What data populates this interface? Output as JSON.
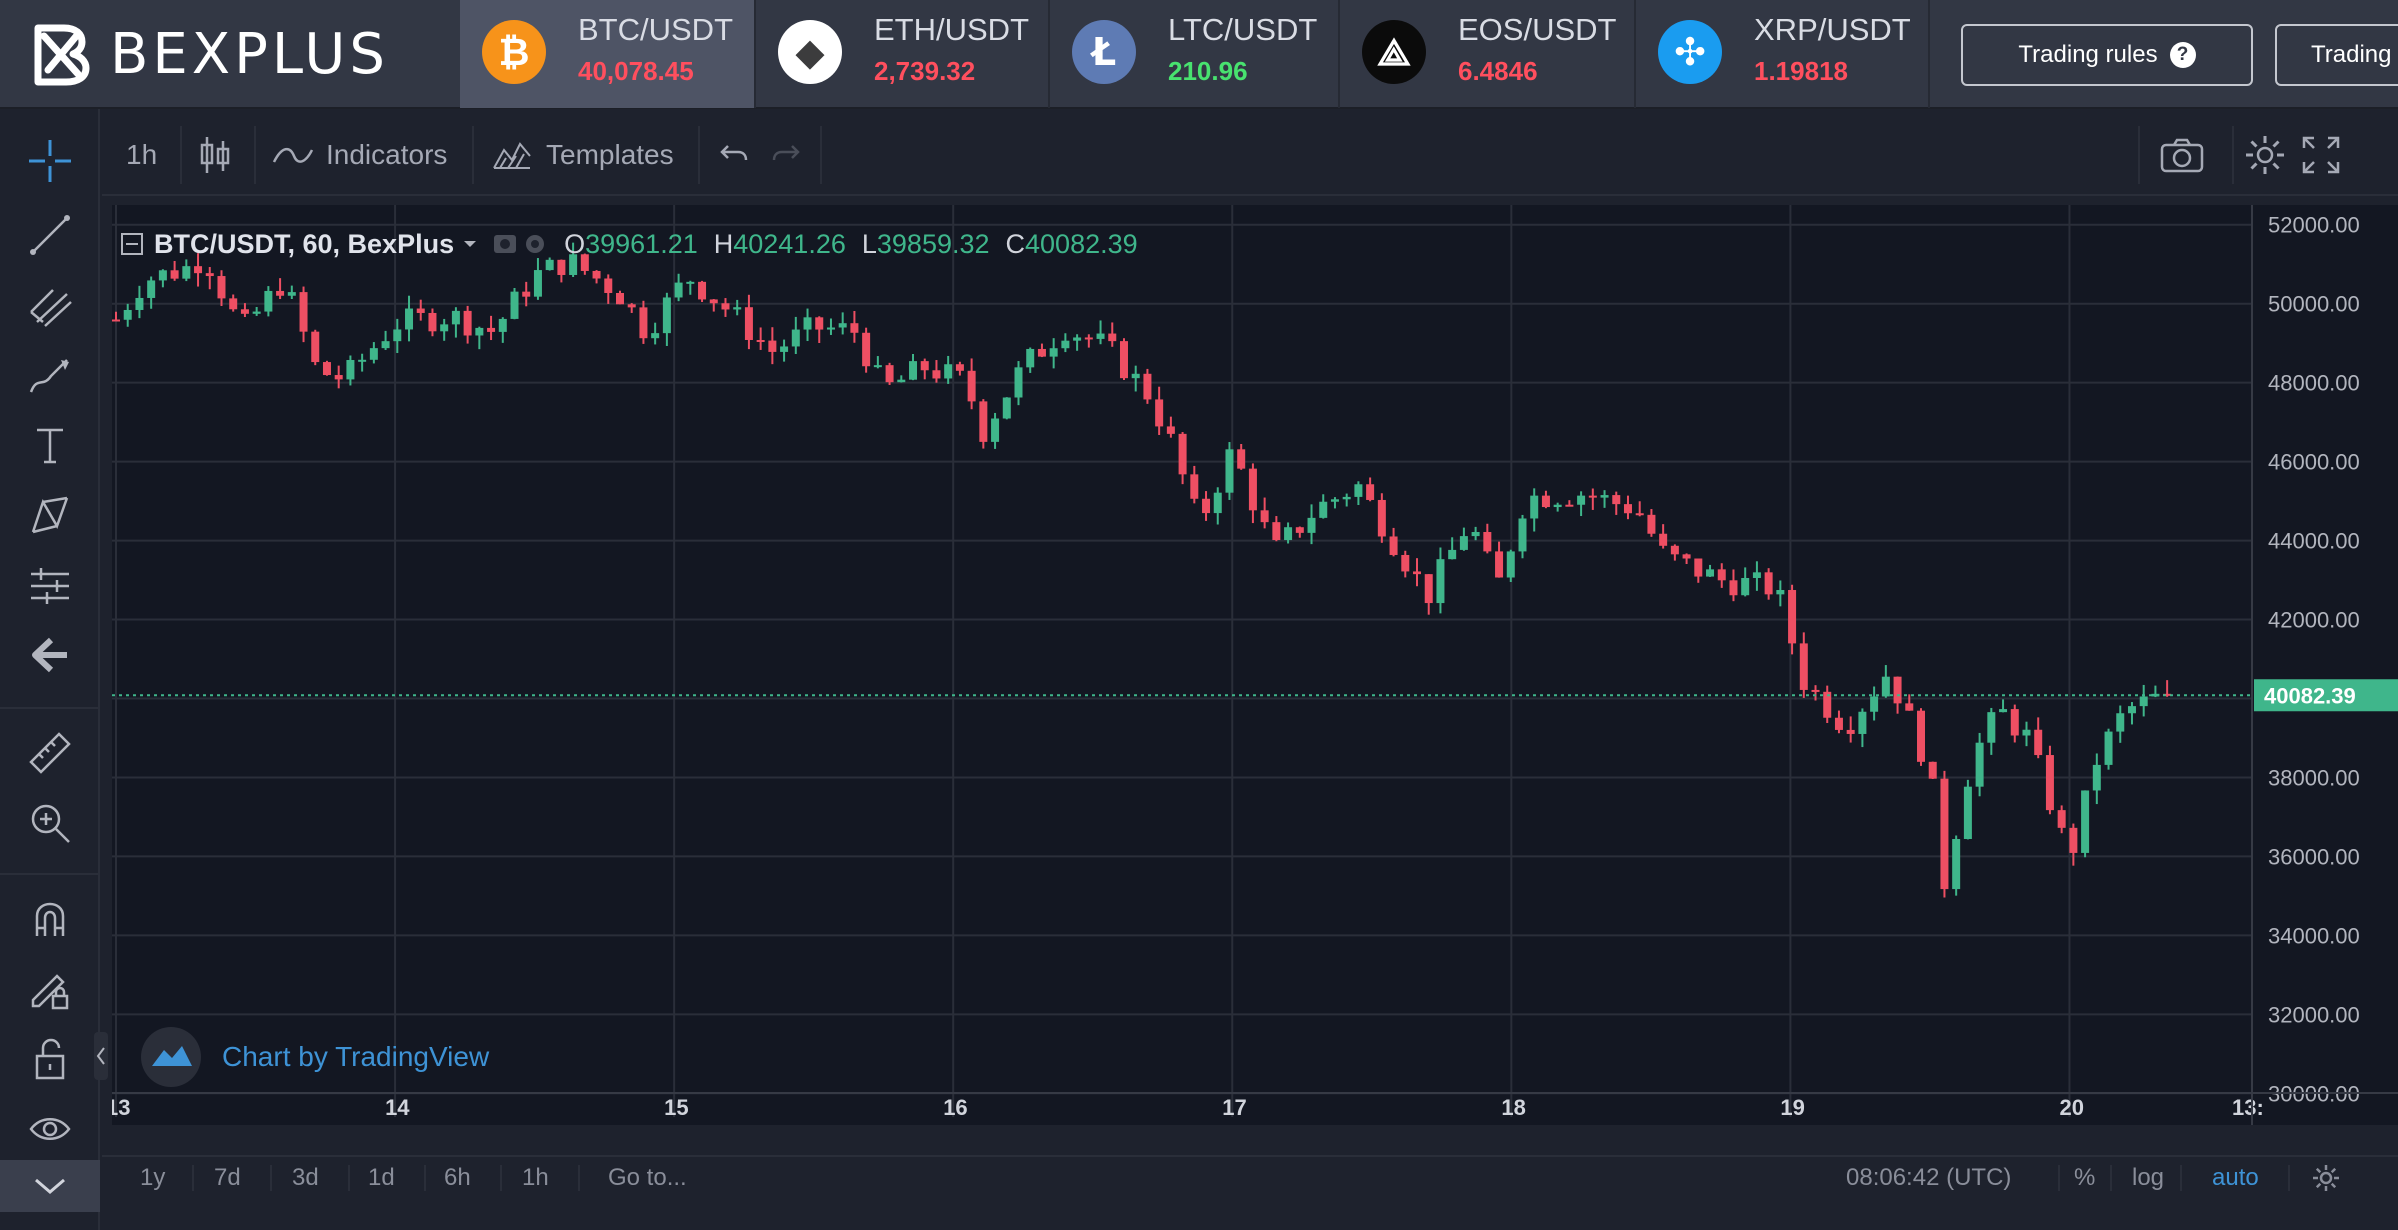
{
  "brand": {
    "name": "BEXPLUS"
  },
  "tickers": [
    {
      "pair": "BTC/USDT",
      "price": "40,078.45",
      "trend": "down",
      "icon": "bitcoin-icon",
      "color": "#f7931a",
      "active": true
    },
    {
      "pair": "ETH/USDT",
      "price": "2,739.32",
      "trend": "down",
      "icon": "ethereum-icon",
      "color": "#ffffff",
      "active": false
    },
    {
      "pair": "LTC/USDT",
      "price": "210.96",
      "trend": "up",
      "icon": "litecoin-icon",
      "color": "#5e7bb4",
      "active": false
    },
    {
      "pair": "EOS/USDT",
      "price": "6.4846",
      "trend": "down",
      "icon": "eos-icon",
      "color": "#0b0b0b",
      "active": false
    },
    {
      "pair": "XRP/USDT",
      "price": "1.19818",
      "trend": "down",
      "icon": "xrp-icon",
      "color": "#1a9cf0",
      "active": false
    }
  ],
  "header_buttons": {
    "trading_rules": "Trading rules",
    "trading_cut": "Trading"
  },
  "chart_toolbar": {
    "interval": "1h",
    "indicators": "Indicators",
    "templates": "Templates"
  },
  "legend": {
    "symbol": "BTC/USDT, 60, BexPlus",
    "o_label": "O",
    "o": "39961.21",
    "h_label": "H",
    "h": "40241.26",
    "l_label": "L",
    "l": "39859.32",
    "c_label": "C",
    "c": "40082.39"
  },
  "watermark": "Chart by TradingView",
  "bottom_bar": {
    "ranges": [
      "1y",
      "7d",
      "3d",
      "1d",
      "6h",
      "1h"
    ],
    "goto": "Go to...",
    "time": "08:06:42 (UTC)",
    "percent": "%",
    "log": "log",
    "auto": "auto"
  },
  "colors": {
    "up": "#3fb68b",
    "down": "#ee4f63",
    "bg": "#131722",
    "grid": "#2a2e39",
    "last_price_tag": "#3fb68b"
  },
  "chart_data": {
    "type": "candlestick",
    "title": "BTC/USDT, 60, BexPlus",
    "interval": "60",
    "x_ticks": [
      "13",
      "14",
      "15",
      "16",
      "17",
      "18",
      "19",
      "20",
      "13:"
    ],
    "y_ticks": [
      "52000.00",
      "50000.00",
      "48000.00",
      "46000.00",
      "44000.00",
      "42000.00",
      "40000.00",
      "38000.00",
      "36000.00",
      "34000.00",
      "32000.00",
      "30000.00"
    ],
    "ylim": [
      29400,
      52500
    ],
    "last_price": "40082.39",
    "last_price_value": 40082.39,
    "close_path": [
      [
        13.0,
        49600
      ],
      [
        13.1,
        50600
      ],
      [
        13.25,
        50900
      ],
      [
        13.32,
        51200
      ],
      [
        13.45,
        49300
      ],
      [
        13.6,
        50600
      ],
      [
        13.72,
        48300
      ],
      [
        13.82,
        48100
      ],
      [
        14.0,
        49500
      ],
      [
        14.2,
        49700
      ],
      [
        14.35,
        49300
      ],
      [
        14.5,
        50700
      ],
      [
        14.62,
        51100
      ],
      [
        14.8,
        50300
      ],
      [
        14.9,
        49300
      ],
      [
        15.05,
        50700
      ],
      [
        15.2,
        49800
      ],
      [
        15.35,
        48800
      ],
      [
        15.5,
        49400
      ],
      [
        15.65,
        49300
      ],
      [
        15.75,
        47800
      ],
      [
        15.9,
        48400
      ],
      [
        16.05,
        48000
      ],
      [
        16.1,
        46700
      ],
      [
        16.25,
        48400
      ],
      [
        16.4,
        49400
      ],
      [
        16.55,
        48900
      ],
      [
        16.7,
        47700
      ],
      [
        16.78,
        46500
      ],
      [
        16.88,
        44400
      ],
      [
        17.0,
        46300
      ],
      [
        17.15,
        43700
      ],
      [
        17.3,
        44800
      ],
      [
        17.45,
        45400
      ],
      [
        17.55,
        44300
      ],
      [
        17.7,
        42600
      ],
      [
        17.85,
        44500
      ],
      [
        17.95,
        42800
      ],
      [
        18.05,
        45100
      ],
      [
        18.25,
        45200
      ],
      [
        18.45,
        44800
      ],
      [
        18.55,
        43600
      ],
      [
        18.75,
        43000
      ],
      [
        18.95,
        42800
      ],
      [
        19.05,
        40400
      ],
      [
        19.2,
        39300
      ],
      [
        19.35,
        40700
      ],
      [
        19.5,
        38200
      ],
      [
        19.55,
        35300
      ],
      [
        19.65,
        38500
      ],
      [
        19.75,
        39700
      ],
      [
        19.85,
        39000
      ],
      [
        19.95,
        37000
      ],
      [
        20.0,
        35900
      ],
      [
        20.1,
        38500
      ],
      [
        20.2,
        39700
      ],
      [
        20.35,
        40100
      ]
    ]
  }
}
